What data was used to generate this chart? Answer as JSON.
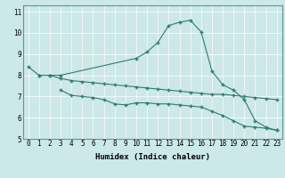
{
  "line1_x": [
    0,
    1,
    2,
    3,
    10,
    11,
    12,
    13,
    14,
    15,
    16,
    17,
    18,
    19,
    20,
    21,
    22,
    23
  ],
  "line1_y": [
    8.4,
    8.0,
    8.0,
    8.0,
    8.8,
    9.1,
    9.55,
    10.35,
    10.5,
    10.6,
    10.05,
    8.2,
    7.55,
    7.3,
    6.85,
    5.85,
    5.55,
    5.4
  ],
  "line2_x": [
    1,
    2,
    3,
    4,
    5,
    6,
    7,
    8,
    9,
    10,
    11,
    12,
    13,
    14,
    15,
    16,
    17,
    18,
    19,
    20,
    21,
    22,
    23
  ],
  "line2_y": [
    8.0,
    8.0,
    7.85,
    7.75,
    7.7,
    7.65,
    7.6,
    7.55,
    7.5,
    7.45,
    7.4,
    7.35,
    7.3,
    7.25,
    7.2,
    7.15,
    7.1,
    7.1,
    7.05,
    7.0,
    6.95,
    6.9,
    6.85
  ],
  "line3_x": [
    3,
    4,
    5,
    6,
    7,
    8,
    9,
    10,
    11,
    12,
    13,
    14,
    15,
    16,
    17,
    18,
    19,
    20,
    21,
    22,
    23
  ],
  "line3_y": [
    7.3,
    7.05,
    7.0,
    6.95,
    6.85,
    6.65,
    6.6,
    6.7,
    6.7,
    6.65,
    6.65,
    6.6,
    6.55,
    6.5,
    6.3,
    6.1,
    5.85,
    5.6,
    5.55,
    5.5,
    5.4
  ],
  "line_color": "#2e7d6e",
  "bg_color": "#cce8e8",
  "grid_color": "#b0d8d8",
  "xlabel": "Humidex (Indice chaleur)",
  "xlim": [
    -0.5,
    23.5
  ],
  "ylim": [
    5,
    11.3
  ],
  "yticks": [
    5,
    6,
    7,
    8,
    9,
    10,
    11
  ],
  "xticks": [
    0,
    1,
    2,
    3,
    4,
    5,
    6,
    7,
    8,
    9,
    10,
    11,
    12,
    13,
    14,
    15,
    16,
    17,
    18,
    19,
    20,
    21,
    22,
    23
  ],
  "label_fontsize": 6.5,
  "tick_fontsize": 5.5
}
